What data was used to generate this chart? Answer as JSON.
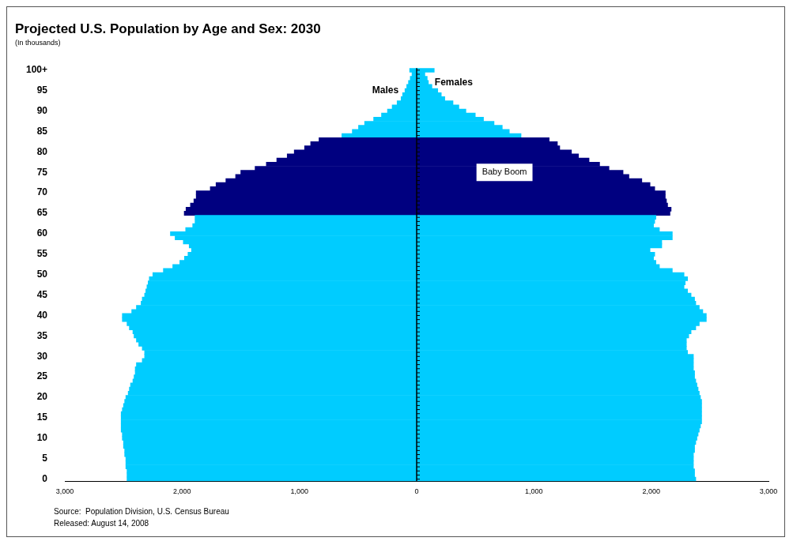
{
  "chart_data": {
    "type": "bar",
    "orientation": "horizontal",
    "stacked": true,
    "title": "Projected U.S. Population by Age and Sex: 2030",
    "subtitle": "(In thousands)",
    "categories": [
      "100+",
      null,
      null,
      null,
      null,
      "95",
      null,
      null,
      null,
      null,
      "90",
      null,
      null,
      null,
      null,
      "85",
      null,
      null,
      null,
      null,
      "80",
      null,
      null,
      null,
      null,
      "75",
      null,
      null,
      null,
      null,
      "70",
      null,
      null,
      null,
      null,
      "65",
      null,
      null,
      null,
      null,
      "60",
      null,
      null,
      null,
      null,
      "55",
      null,
      null,
      null,
      null,
      "50",
      null,
      null,
      null,
      null,
      "45",
      null,
      null,
      null,
      null,
      "40",
      null,
      null,
      null,
      null,
      "35",
      null,
      null,
      null,
      null,
      "30",
      null,
      null,
      null,
      null,
      "25",
      null,
      null,
      null,
      null,
      "20",
      null,
      null,
      null,
      null,
      "15",
      null,
      null,
      null,
      null,
      "10",
      null,
      null,
      null,
      null,
      "5",
      null,
      null,
      null,
      null,
      "0"
    ],
    "series": [
      {
        "name": "Males",
        "values": [
          -60,
          -40,
          -55,
          -70,
          -85,
          -100,
          -120,
          -133,
          -167,
          -209,
          -249,
          -300,
          -367,
          -444,
          -496,
          -549,
          -638,
          -833,
          -904,
          -956,
          -1044,
          -1104,
          -1193,
          -1282,
          -1378,
          -1500,
          -1544,
          -1627,
          -1711,
          -1760,
          -1880,
          -1880,
          -1900,
          -1929,
          -1967,
          -1982,
          -1890,
          -1890,
          -1910,
          -1970,
          -2100,
          -2060,
          -1990,
          -1940,
          -1920,
          -1950,
          -1980,
          -2020,
          -2080,
          -2160,
          -2250,
          -2280,
          -2290,
          -2300,
          -2310,
          -2320,
          -2340,
          -2350,
          -2390,
          -2430,
          -2510,
          -2510,
          -2470,
          -2450,
          -2420,
          -2410,
          -2390,
          -2370,
          -2340,
          -2320,
          -2320,
          -2340,
          -2390,
          -2400,
          -2400,
          -2410,
          -2420,
          -2440,
          -2450,
          -2460,
          -2480,
          -2490,
          -2500,
          -2510,
          -2520,
          -2520,
          -2520,
          -2520,
          -2520,
          -2510,
          -2510,
          -2500,
          -2500,
          -2490,
          -2490,
          -2480,
          -2480,
          -2480,
          -2470,
          -2470,
          -2470
        ],
        "colors": [
          "#00ccff",
          "#00ccff",
          "#00ccff",
          "#00ccff",
          "#00ccff",
          "#00ccff",
          "#00ccff",
          "#00ccff",
          "#00ccff",
          "#00ccff",
          "#00ccff",
          "#00ccff",
          "#00ccff",
          "#00ccff",
          "#00ccff",
          "#00ccff",
          "#00ccff",
          "#000080",
          "#000080",
          "#000080",
          "#000080",
          "#000080",
          "#000080",
          "#000080",
          "#000080",
          "#000080",
          "#000080",
          "#000080",
          "#000080",
          "#000080",
          "#000080",
          "#000080",
          "#000080",
          "#000080",
          "#000080",
          "#000080",
          "#00ccff",
          "#00ccff",
          "#00ccff",
          "#00ccff",
          "#00ccff",
          "#00ccff",
          "#00ccff",
          "#00ccff",
          "#00ccff",
          "#00ccff",
          "#00ccff",
          "#00ccff",
          "#00ccff",
          "#00ccff",
          "#00ccff",
          "#00ccff",
          "#00ccff",
          "#00ccff",
          "#00ccff",
          "#00ccff",
          "#00ccff",
          "#00ccff",
          "#00ccff",
          "#00ccff",
          "#00ccff",
          "#00ccff",
          "#00ccff",
          "#00ccff",
          "#00ccff",
          "#00ccff",
          "#00ccff",
          "#00ccff",
          "#00ccff",
          "#00ccff",
          "#00ccff",
          "#00ccff",
          "#00ccff",
          "#00ccff",
          "#00ccff",
          "#00ccff",
          "#00ccff",
          "#00ccff",
          "#00ccff",
          "#00ccff",
          "#00ccff",
          "#00ccff",
          "#00ccff",
          "#00ccff",
          "#00ccff",
          "#00ccff",
          "#00ccff",
          "#00ccff",
          "#00ccff",
          "#00ccff",
          "#00ccff",
          "#00ccff",
          "#00ccff",
          "#00ccff",
          "#00ccff",
          "#00ccff",
          "#00ccff",
          "#00ccff",
          "#00ccff",
          "#00ccff",
          "#00ccff"
        ]
      },
      {
        "name": "Females",
        "values": [
          150,
          70,
          90,
          100,
          130,
          180,
          210,
          240,
          310,
          360,
          420,
          500,
          570,
          660,
          730,
          790,
          890,
          1130,
          1200,
          1220,
          1320,
          1380,
          1470,
          1560,
          1640,
          1760,
          1810,
          1920,
          1990,
          2030,
          2120,
          2120,
          2130,
          2140,
          2170,
          2160,
          2040,
          2030,
          2020,
          2070,
          2180,
          2180,
          2090,
          2090,
          1990,
          2030,
          2020,
          2040,
          2070,
          2180,
          2280,
          2310,
          2290,
          2280,
          2310,
          2340,
          2370,
          2380,
          2410,
          2440,
          2470,
          2470,
          2410,
          2380,
          2340,
          2320,
          2300,
          2300,
          2300,
          2310,
          2360,
          2360,
          2360,
          2360,
          2370,
          2370,
          2380,
          2390,
          2400,
          2410,
          2420,
          2430,
          2430,
          2430,
          2430,
          2430,
          2430,
          2420,
          2410,
          2400,
          2390,
          2380,
          2370,
          2370,
          2360,
          2360,
          2360,
          2360,
          2370,
          2370,
          2380
        ],
        "colors": [
          "#00ccff",
          "#00ccff",
          "#00ccff",
          "#00ccff",
          "#00ccff",
          "#00ccff",
          "#00ccff",
          "#00ccff",
          "#00ccff",
          "#00ccff",
          "#00ccff",
          "#00ccff",
          "#00ccff",
          "#00ccff",
          "#00ccff",
          "#00ccff",
          "#00ccff",
          "#000080",
          "#000080",
          "#000080",
          "#000080",
          "#000080",
          "#000080",
          "#000080",
          "#000080",
          "#000080",
          "#000080",
          "#000080",
          "#000080",
          "#000080",
          "#000080",
          "#000080",
          "#000080",
          "#000080",
          "#000080",
          "#000080",
          "#00ccff",
          "#00ccff",
          "#00ccff",
          "#00ccff",
          "#00ccff",
          "#00ccff",
          "#00ccff",
          "#00ccff",
          "#00ccff",
          "#00ccff",
          "#00ccff",
          "#00ccff",
          "#00ccff",
          "#00ccff",
          "#00ccff",
          "#00ccff",
          "#00ccff",
          "#00ccff",
          "#00ccff",
          "#00ccff",
          "#00ccff",
          "#00ccff",
          "#00ccff",
          "#00ccff",
          "#00ccff",
          "#00ccff",
          "#00ccff",
          "#00ccff",
          "#00ccff",
          "#00ccff",
          "#00ccff",
          "#00ccff",
          "#00ccff",
          "#00ccff",
          "#00ccff",
          "#00ccff",
          "#00ccff",
          "#00ccff",
          "#00ccff",
          "#00ccff",
          "#00ccff",
          "#00ccff",
          "#00ccff",
          "#00ccff",
          "#00ccff",
          "#00ccff",
          "#00ccff",
          "#00ccff",
          "#00ccff",
          "#00ccff",
          "#00ccff",
          "#00ccff",
          "#00ccff",
          "#00ccff",
          "#00ccff",
          "#00ccff",
          "#00ccff",
          "#00ccff",
          "#00ccff",
          "#00ccff",
          "#00ccff",
          "#00ccff",
          "#00ccff",
          "#00ccff",
          "#00ccff"
        ]
      }
    ],
    "xlim": [
      -3000,
      3000
    ],
    "xticks": [
      {
        "value": -3000,
        "label": "3,000"
      },
      {
        "value": -2000,
        "label": "2,000"
      },
      {
        "value": -1000,
        "label": "1,000"
      },
      0,
      {
        "value": 1000,
        "label": "1,000"
      },
      {
        "value": 2000,
        "label": "2,000"
      },
      {
        "value": 3000,
        "label": "3,000"
      }
    ],
    "annotations": [
      "Baby Boom",
      "Source:  Population Division, U.S. Census Bureau",
      "Released: August 14, 2008"
    ]
  }
}
